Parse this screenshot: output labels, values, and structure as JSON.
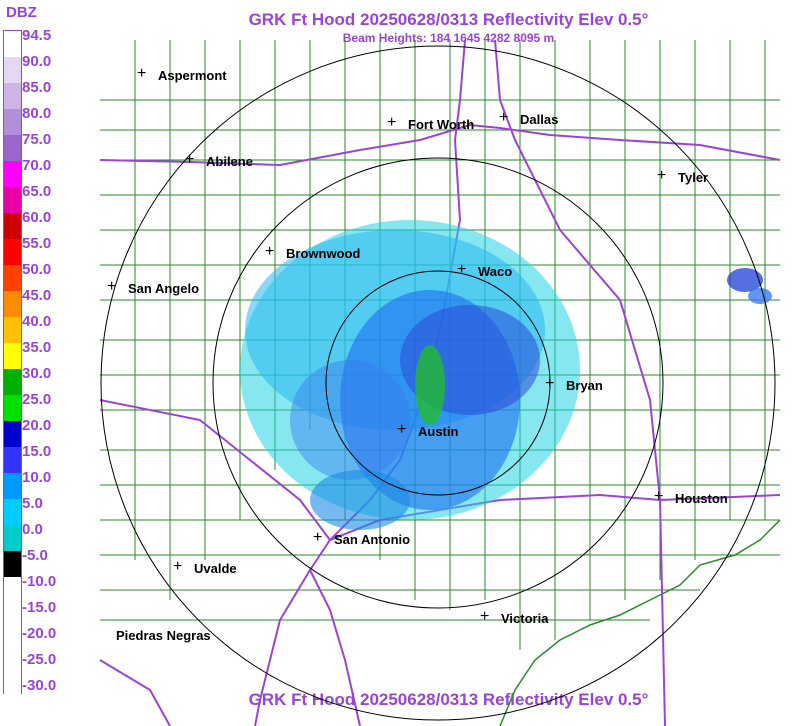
{
  "title": "GRK Ft Hood 20250628/0313 Reflectivity Elev 0.5°",
  "subtitle": "Beam Heights: 184 1645 4282 8095 m",
  "legend": {
    "unit": "DBZ",
    "levels": [
      "94.5",
      "90.0",
      "85.0",
      "80.0",
      "75.0",
      "70.0",
      "65.0",
      "60.0",
      "55.0",
      "50.0",
      "45.0",
      "40.0",
      "35.0",
      "30.0",
      "25.0",
      "20.0",
      "15.0",
      "10.0",
      "5.0",
      "0.0",
      "-5.0",
      "-10.0",
      "-15.0",
      "-20.0",
      "-25.0",
      "-30.0"
    ],
    "colors": [
      "#ffffff",
      "#e6d8f2",
      "#cdb3e6",
      "#b38fd9",
      "#9966cc",
      "#ff00ff",
      "#e600a8",
      "#cc0000",
      "#ff0000",
      "#ff4000",
      "#ff8c00",
      "#ffc000",
      "#ffff00",
      "#00b000",
      "#00e000",
      "#0000cc",
      "#3333ff",
      "#0099ff",
      "#00ccff",
      "#00cccc",
      "#000000",
      "#ffffff",
      "#ffffff",
      "#ffffff",
      "#ffffff",
      "#ffffff"
    ]
  },
  "cities": [
    {
      "name": "Aspermont"
    },
    {
      "name": "Fort Worth"
    },
    {
      "name": "Dallas"
    },
    {
      "name": "Abilene"
    },
    {
      "name": "Tyler"
    },
    {
      "name": "Brownwood"
    },
    {
      "name": "Waco"
    },
    {
      "name": "San Angelo"
    },
    {
      "name": "Bryan"
    },
    {
      "name": "Austin"
    },
    {
      "name": "Houston"
    },
    {
      "name": "San Antonio"
    },
    {
      "name": "Uvalde"
    },
    {
      "name": "Victoria"
    },
    {
      "name": "Piedras Negras"
    }
  ],
  "colors": {
    "accent": "#9a44d6",
    "county": "#2a8a2a",
    "highway": "#9a44d6",
    "rings": "#000000"
  }
}
